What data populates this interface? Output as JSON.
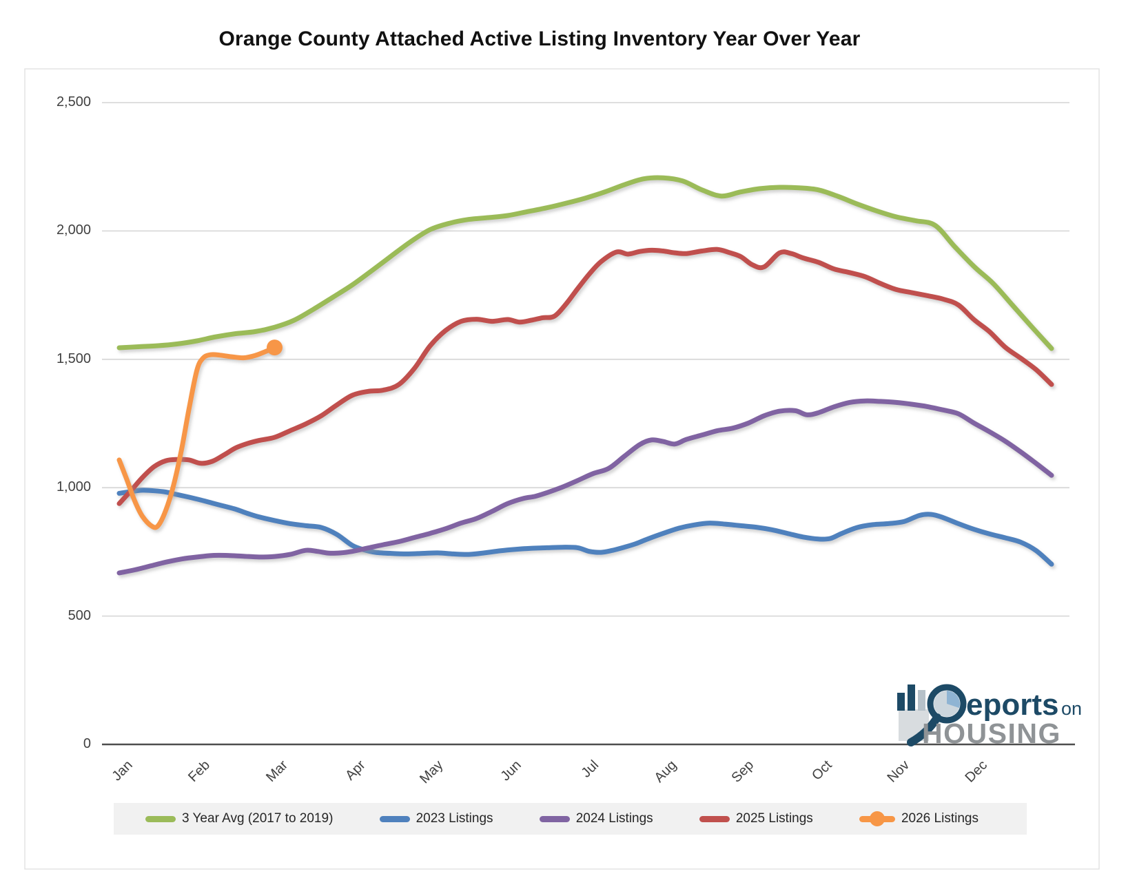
{
  "title": "Orange County Attached Active Listing Inventory Year Over Year",
  "colors": {
    "grid": "#d9d9d9",
    "axis_line": "#4d4d4d",
    "chart_border": "#e2e2e2",
    "axis_text": "#404040",
    "legend_bg": "#f1f1f1",
    "legend_text": "#262626",
    "green": "#9BBB59",
    "blue": "#4F81BD",
    "purple": "#8064A2",
    "red": "#C0504D",
    "orange": "#F79646",
    "logo_navy": "#1d4a66",
    "logo_gray": "#8f9396",
    "logo_pie_light": "#ccd6dd",
    "logo_pie_blue": "#8fb4d3"
  },
  "y_axis": {
    "ticks": [
      {
        "label": "2,500",
        "value": 2500
      },
      {
        "label": "2,000",
        "value": 2000
      },
      {
        "label": "1,500",
        "value": 1500
      },
      {
        "label": "1,000",
        "value": 1000
      },
      {
        "label": "500",
        "value": 500
      },
      {
        "label": "0",
        "value": 0
      }
    ]
  },
  "x_axis": {
    "months": [
      "Jan",
      "Feb",
      "Mar",
      "Apr",
      "May",
      "Jun",
      "Jul",
      "Aug",
      "Sep",
      "Oct",
      "Nov",
      "Dec"
    ]
  },
  "legend": [
    {
      "label": "3 Year Avg (2017 to 2019)",
      "color": "#9BBB59",
      "marker": false
    },
    {
      "label": "2023 Listings",
      "color": "#4F81BD",
      "marker": false
    },
    {
      "label": "2024 Listings",
      "color": "#8064A2",
      "marker": false
    },
    {
      "label": "2025 Listings",
      "color": "#C0504D",
      "marker": false
    },
    {
      "label": "2026 Listings",
      "color": "#F79646",
      "marker": true
    }
  ],
  "logo": {
    "part1": "eports",
    "part2": "on",
    "part3": "HOUSING"
  },
  "chart_data": {
    "type": "line",
    "title": "Orange County Attached Active Listing Inventory Year Over Year",
    "xlabel": "",
    "ylabel": "",
    "x_unit": "months, 0 = Jan 1 through 12 = Dec 31",
    "ylim": [
      0,
      2500
    ],
    "grid": "horizontal",
    "legend_position": "bottom",
    "series": [
      {
        "name": "3 Year Avg (2017 to 2019)",
        "color": "#9BBB59",
        "end_marker": false,
        "points": [
          [
            0,
            1545
          ],
          [
            0.25,
            1549
          ],
          [
            0.5,
            1553
          ],
          [
            0.75,
            1560
          ],
          [
            1,
            1572
          ],
          [
            1.25,
            1588
          ],
          [
            1.5,
            1600
          ],
          [
            1.75,
            1608
          ],
          [
            2,
            1625
          ],
          [
            2.25,
            1652
          ],
          [
            2.5,
            1695
          ],
          [
            2.75,
            1742
          ],
          [
            3,
            1790
          ],
          [
            3.25,
            1845
          ],
          [
            3.5,
            1902
          ],
          [
            3.75,
            1958
          ],
          [
            4,
            2005
          ],
          [
            4.25,
            2030
          ],
          [
            4.5,
            2045
          ],
          [
            4.75,
            2052
          ],
          [
            5,
            2060
          ],
          [
            5.25,
            2075
          ],
          [
            5.5,
            2090
          ],
          [
            5.75,
            2108
          ],
          [
            6,
            2128
          ],
          [
            6.25,
            2152
          ],
          [
            6.5,
            2180
          ],
          [
            6.75,
            2203
          ],
          [
            7,
            2207
          ],
          [
            7.25,
            2195
          ],
          [
            7.5,
            2160
          ],
          [
            7.75,
            2136
          ],
          [
            8,
            2152
          ],
          [
            8.25,
            2165
          ],
          [
            8.5,
            2170
          ],
          [
            8.75,
            2168
          ],
          [
            9,
            2160
          ],
          [
            9.25,
            2135
          ],
          [
            9.5,
            2105
          ],
          [
            9.75,
            2078
          ],
          [
            10,
            2055
          ],
          [
            10.25,
            2040
          ],
          [
            10.5,
            2022
          ],
          [
            10.75,
            1940
          ],
          [
            11,
            1862
          ],
          [
            11.25,
            1795
          ],
          [
            11.5,
            1710
          ],
          [
            11.75,
            1625
          ],
          [
            12,
            1542
          ]
        ]
      },
      {
        "name": "2023 Listings",
        "color": "#4F81BD",
        "end_marker": false,
        "points": [
          [
            0,
            978
          ],
          [
            0.15,
            985
          ],
          [
            0.3,
            990
          ],
          [
            0.45,
            988
          ],
          [
            0.6,
            983
          ],
          [
            0.75,
            973
          ],
          [
            0.9,
            963
          ],
          [
            1.05,
            952
          ],
          [
            1.2,
            940
          ],
          [
            1.35,
            928
          ],
          [
            1.5,
            916
          ],
          [
            1.65,
            900
          ],
          [
            1.8,
            886
          ],
          [
            2,
            872
          ],
          [
            2.2,
            860
          ],
          [
            2.4,
            852
          ],
          [
            2.6,
            845
          ],
          [
            2.8,
            818
          ],
          [
            3,
            775
          ],
          [
            3.15,
            758
          ],
          [
            3.3,
            748
          ],
          [
            3.5,
            744
          ],
          [
            3.7,
            742
          ],
          [
            3.9,
            744
          ],
          [
            4.1,
            746
          ],
          [
            4.3,
            742
          ],
          [
            4.5,
            740
          ],
          [
            4.7,
            746
          ],
          [
            4.9,
            754
          ],
          [
            5.1,
            760
          ],
          [
            5.3,
            764
          ],
          [
            5.5,
            766
          ],
          [
            5.7,
            768
          ],
          [
            5.9,
            766
          ],
          [
            6.05,
            752
          ],
          [
            6.2,
            748
          ],
          [
            6.35,
            756
          ],
          [
            6.5,
            768
          ],
          [
            6.65,
            782
          ],
          [
            6.8,
            800
          ],
          [
            7,
            822
          ],
          [
            7.2,
            842
          ],
          [
            7.4,
            855
          ],
          [
            7.6,
            862
          ],
          [
            7.8,
            858
          ],
          [
            8,
            852
          ],
          [
            8.2,
            846
          ],
          [
            8.4,
            836
          ],
          [
            8.6,
            822
          ],
          [
            8.8,
            808
          ],
          [
            9,
            800
          ],
          [
            9.15,
            802
          ],
          [
            9.3,
            822
          ],
          [
            9.5,
            845
          ],
          [
            9.7,
            856
          ],
          [
            9.9,
            860
          ],
          [
            10.1,
            868
          ],
          [
            10.3,
            892
          ],
          [
            10.45,
            896
          ],
          [
            10.6,
            884
          ],
          [
            10.8,
            860
          ],
          [
            11,
            838
          ],
          [
            11.2,
            820
          ],
          [
            11.4,
            805
          ],
          [
            11.6,
            788
          ],
          [
            11.8,
            755
          ],
          [
            12,
            702
          ]
        ]
      },
      {
        "name": "2024 Listings",
        "color": "#8064A2",
        "end_marker": false,
        "points": [
          [
            0,
            668
          ],
          [
            0.2,
            680
          ],
          [
            0.4,
            695
          ],
          [
            0.6,
            710
          ],
          [
            0.8,
            722
          ],
          [
            1,
            730
          ],
          [
            1.2,
            736
          ],
          [
            1.4,
            736
          ],
          [
            1.6,
            733
          ],
          [
            1.8,
            730
          ],
          [
            2,
            732
          ],
          [
            2.2,
            740
          ],
          [
            2.4,
            756
          ],
          [
            2.55,
            752
          ],
          [
            2.7,
            745
          ],
          [
            2.85,
            746
          ],
          [
            3,
            752
          ],
          [
            3.2,
            765
          ],
          [
            3.4,
            778
          ],
          [
            3.6,
            790
          ],
          [
            3.8,
            806
          ],
          [
            4,
            822
          ],
          [
            4.2,
            840
          ],
          [
            4.4,
            862
          ],
          [
            4.6,
            880
          ],
          [
            4.8,
            908
          ],
          [
            5,
            938
          ],
          [
            5.2,
            958
          ],
          [
            5.35,
            966
          ],
          [
            5.5,
            980
          ],
          [
            5.7,
            1002
          ],
          [
            5.9,
            1028
          ],
          [
            6.1,
            1055
          ],
          [
            6.3,
            1075
          ],
          [
            6.5,
            1122
          ],
          [
            6.7,
            1168
          ],
          [
            6.85,
            1186
          ],
          [
            7,
            1180
          ],
          [
            7.15,
            1170
          ],
          [
            7.3,
            1188
          ],
          [
            7.5,
            1205
          ],
          [
            7.7,
            1222
          ],
          [
            7.9,
            1232
          ],
          [
            8.1,
            1252
          ],
          [
            8.3,
            1280
          ],
          [
            8.5,
            1298
          ],
          [
            8.7,
            1300
          ],
          [
            8.85,
            1284
          ],
          [
            9,
            1292
          ],
          [
            9.2,
            1315
          ],
          [
            9.4,
            1332
          ],
          [
            9.6,
            1338
          ],
          [
            9.8,
            1336
          ],
          [
            10,
            1332
          ],
          [
            10.2,
            1325
          ],
          [
            10.4,
            1316
          ],
          [
            10.6,
            1303
          ],
          [
            10.8,
            1288
          ],
          [
            11,
            1252
          ],
          [
            11.2,
            1218
          ],
          [
            11.4,
            1182
          ],
          [
            11.6,
            1140
          ],
          [
            11.8,
            1095
          ],
          [
            12,
            1048
          ]
        ]
      },
      {
        "name": "2025 Listings",
        "color": "#C0504D",
        "end_marker": false,
        "points": [
          [
            0,
            938
          ],
          [
            0.15,
            988
          ],
          [
            0.3,
            1040
          ],
          [
            0.45,
            1082
          ],
          [
            0.6,
            1105
          ],
          [
            0.75,
            1110
          ],
          [
            0.9,
            1108
          ],
          [
            1.05,
            1095
          ],
          [
            1.2,
            1103
          ],
          [
            1.35,
            1128
          ],
          [
            1.5,
            1155
          ],
          [
            1.65,
            1172
          ],
          [
            1.8,
            1184
          ],
          [
            2,
            1196
          ],
          [
            2.2,
            1222
          ],
          [
            2.4,
            1248
          ],
          [
            2.6,
            1280
          ],
          [
            2.8,
            1322
          ],
          [
            3,
            1360
          ],
          [
            3.2,
            1375
          ],
          [
            3.4,
            1380
          ],
          [
            3.6,
            1402
          ],
          [
            3.8,
            1465
          ],
          [
            4,
            1552
          ],
          [
            4.2,
            1612
          ],
          [
            4.4,
            1648
          ],
          [
            4.6,
            1656
          ],
          [
            4.8,
            1648
          ],
          [
            5,
            1655
          ],
          [
            5.15,
            1645
          ],
          [
            5.3,
            1652
          ],
          [
            5.45,
            1662
          ],
          [
            5.6,
            1668
          ],
          [
            5.75,
            1715
          ],
          [
            5.9,
            1775
          ],
          [
            6.05,
            1832
          ],
          [
            6.2,
            1880
          ],
          [
            6.4,
            1918
          ],
          [
            6.55,
            1910
          ],
          [
            6.7,
            1920
          ],
          [
            6.85,
            1925
          ],
          [
            7,
            1922
          ],
          [
            7.15,
            1915
          ],
          [
            7.3,
            1912
          ],
          [
            7.5,
            1922
          ],
          [
            7.7,
            1928
          ],
          [
            7.85,
            1916
          ],
          [
            8,
            1900
          ],
          [
            8.15,
            1868
          ],
          [
            8.3,
            1860
          ],
          [
            8.5,
            1915
          ],
          [
            8.65,
            1912
          ],
          [
            8.8,
            1895
          ],
          [
            9,
            1878
          ],
          [
            9.2,
            1852
          ],
          [
            9.4,
            1838
          ],
          [
            9.6,
            1822
          ],
          [
            9.8,
            1795
          ],
          [
            10,
            1772
          ],
          [
            10.2,
            1760
          ],
          [
            10.4,
            1748
          ],
          [
            10.6,
            1735
          ],
          [
            10.8,
            1712
          ],
          [
            11,
            1655
          ],
          [
            11.2,
            1608
          ],
          [
            11.4,
            1548
          ],
          [
            11.6,
            1505
          ],
          [
            11.8,
            1460
          ],
          [
            12,
            1402
          ]
        ]
      },
      {
        "name": "2026 Listings",
        "color": "#F79646",
        "end_marker": true,
        "points": [
          [
            0,
            1108
          ],
          [
            0.1,
            1030
          ],
          [
            0.2,
            948
          ],
          [
            0.3,
            888
          ],
          [
            0.42,
            850
          ],
          [
            0.5,
            852
          ],
          [
            0.6,
            912
          ],
          [
            0.7,
            1010
          ],
          [
            0.8,
            1145
          ],
          [
            0.9,
            1310
          ],
          [
            1,
            1458
          ],
          [
            1.08,
            1505
          ],
          [
            1.18,
            1518
          ],
          [
            1.3,
            1516
          ],
          [
            1.45,
            1510
          ],
          [
            1.6,
            1506
          ],
          [
            1.75,
            1515
          ],
          [
            1.88,
            1530
          ],
          [
            2,
            1546
          ]
        ]
      }
    ]
  }
}
